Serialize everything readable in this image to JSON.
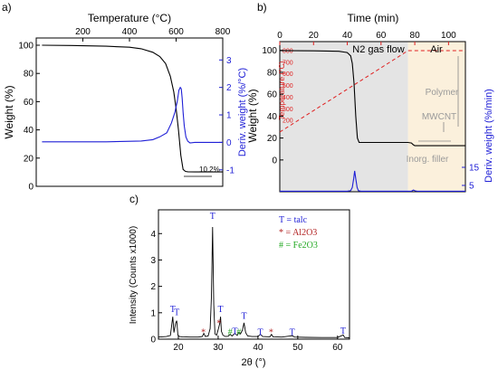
{
  "chart_data": [
    {
      "panel": "a)",
      "type": "line",
      "xlabel_top": "Temperature (°C)",
      "ylabel_left": "Weight (%)",
      "ylabel_right": "Deriv. weight (%/°C)",
      "xlim": [
        0,
        800
      ],
      "xticks": [
        "200",
        "400",
        "600",
        "800"
      ],
      "ylim_left": [
        0,
        100
      ],
      "yticks_left": [
        "0",
        "20",
        "40",
        "60",
        "80",
        "100"
      ],
      "ylim_right": [
        -1.6,
        3.8
      ],
      "yticks_right": [
        "-1",
        "0",
        "1",
        "2",
        "3"
      ],
      "annotation": "10.2%",
      "colors": {
        "weight": "#000000",
        "deriv": "#1f1fd6",
        "right_axis": "#1f1fd6"
      },
      "series": [
        {
          "axis": "left",
          "color": "#000000",
          "x": [
            25,
            150,
            300,
            400,
            450,
            500,
            530,
            555,
            575,
            590,
            600,
            610,
            620,
            630,
            640,
            650,
            680,
            720,
            800
          ],
          "y": [
            100,
            99.8,
            99.3,
            98.6,
            97.5,
            95,
            92,
            87,
            78,
            67,
            55,
            40,
            22,
            12,
            10.6,
            10.3,
            10.2,
            10.2,
            10.2
          ]
        },
        {
          "axis": "right",
          "color": "#1f1fd6",
          "x": [
            25,
            300,
            450,
            500,
            530,
            560,
            580,
            595,
            605,
            612,
            618,
            622,
            626,
            630,
            635,
            642,
            650,
            660,
            680,
            720,
            800
          ],
          "y": [
            0.02,
            0.02,
            0.05,
            0.1,
            0.2,
            0.35,
            0.7,
            1.1,
            1.5,
            1.9,
            2.0,
            1.95,
            1.6,
            1.1,
            0.6,
            0.2,
            0.04,
            -0.02,
            0.0,
            0.0,
            0.0
          ]
        }
      ]
    },
    {
      "panel": "b)",
      "type": "line",
      "xlabel_top": "Time (min)",
      "ylabel_left": "Weight (%)",
      "ylabel_inner": "Temperature (°C)",
      "ylabel_right": "Deriv. weight (%/min)",
      "xlim": [
        0,
        110
      ],
      "xticks": [
        "0",
        "20",
        "40",
        "60",
        "80",
        "100"
      ],
      "ylim_left": [
        -29,
        108
      ],
      "yticks_left": [
        "0",
        "20",
        "40",
        "60",
        "80",
        "100"
      ],
      "yticks_inner": [
        "200",
        "300",
        "400",
        "500",
        "600",
        "700",
        "800"
      ],
      "yticks_right": [
        "5",
        "15"
      ],
      "region_labels": [
        "N2 gas flow",
        "Air"
      ],
      "region_colors": {
        "n2": "#e4e4e4",
        "air": "#fbf0dc"
      },
      "annotations": [
        "Polymer",
        "MWCNT",
        "Inorg. filler"
      ],
      "colors": {
        "weight": "#000000",
        "temperature": "#e02020",
        "deriv": "#1f1fd6"
      },
      "series": [
        {
          "axis": "left",
          "color": "#000000",
          "x": [
            0,
            20,
            35,
            40,
            42,
            43,
            44,
            45,
            46,
            47,
            50,
            60,
            76,
            78,
            79,
            80,
            85,
            100,
            110
          ],
          "y": [
            99.8,
            99.6,
            99.2,
            98,
            95,
            88,
            70,
            40,
            20,
            16,
            16,
            16,
            16,
            15.5,
            14,
            13,
            13,
            13,
            13
          ]
        },
        {
          "axis": "temperature",
          "color": "#e02020",
          "x": [
            0,
            76,
            78,
            110
          ],
          "y": [
            100,
            800,
            800,
            800
          ]
        },
        {
          "axis": "deriv",
          "color": "#1f1fd6",
          "x": [
            0,
            40,
            42,
            43,
            43.8,
            44.4,
            45,
            45.8,
            46.6,
            48,
            60,
            78,
            79.2,
            80.2,
            81.5,
            90,
            110
          ],
          "y": [
            -28.5,
            -28.5,
            -28,
            -25,
            -17,
            -10,
            -17,
            -25,
            -28,
            -28.5,
            -28.5,
            -28.5,
            -27.4,
            -28.2,
            -28.5,
            -28.5,
            -28.5
          ]
        }
      ]
    },
    {
      "panel": "c)",
      "type": "line",
      "xlabel": "2θ (°)",
      "ylabel": "Intensity (Counts x1000)",
      "xlim": [
        15,
        63
      ],
      "xticks": [
        "20",
        "30",
        "40",
        "50",
        "60"
      ],
      "ylim": [
        0,
        4.9
      ],
      "yticks": [
        "0",
        "1",
        "2",
        "3",
        "4"
      ],
      "legend": [
        "T = talc",
        "* = Al2O3",
        "# = Fe2O3"
      ],
      "legend_colors": [
        "#1f1fd6",
        "#b22222",
        "#22a822"
      ],
      "peak_markers": [
        {
          "label": "T",
          "x": 18.6,
          "y": 1.02,
          "color": "#1f1fd6"
        },
        {
          "label": "T",
          "x": 19.6,
          "y": 0.9,
          "color": "#1f1fd6"
        },
        {
          "label": "*",
          "x": 26.3,
          "y": 0.15,
          "color": "#b22222"
        },
        {
          "label": "T",
          "x": 28.6,
          "y": 4.55,
          "color": "#1f1fd6"
        },
        {
          "label": "T",
          "x": 30.6,
          "y": 1.02,
          "color": "#1f1fd6"
        },
        {
          "label": "*",
          "x": 30.2,
          "y": 0.5,
          "color": "#b22222"
        },
        {
          "label": "#",
          "x": 33.0,
          "y": 0.15,
          "color": "#22a822"
        },
        {
          "label": "T",
          "x": 34.2,
          "y": 0.18,
          "color": "#1f1fd6"
        },
        {
          "label": "#",
          "x": 35.2,
          "y": 0.15,
          "color": "#22a822"
        },
        {
          "label": "T",
          "x": 36.5,
          "y": 0.77,
          "color": "#1f1fd6"
        },
        {
          "label": "T",
          "x": 40.6,
          "y": 0.15,
          "color": "#1f1fd6"
        },
        {
          "label": "*",
          "x": 43.3,
          "y": 0.15,
          "color": "#b22222"
        },
        {
          "label": "T",
          "x": 48.6,
          "y": 0.15,
          "color": "#1f1fd6"
        },
        {
          "label": "T",
          "x": 61.4,
          "y": 0.2,
          "color": "#1f1fd6"
        }
      ],
      "series": [
        {
          "color": "#000000",
          "x": [
            15,
            17,
            18,
            18.6,
            18.9,
            19.3,
            19.6,
            19.9,
            20.3,
            21,
            23,
            25,
            26,
            26.4,
            26.8,
            27.5,
            28,
            28.3,
            28.6,
            28.9,
            29.2,
            29.6,
            30,
            30.4,
            30.6,
            30.8,
            31.2,
            31.8,
            32.5,
            33,
            33.5,
            34.2,
            34.8,
            35.2,
            35.6,
            36.1,
            36.5,
            36.9,
            37.4,
            38.5,
            40,
            40.6,
            41.2,
            43,
            43.4,
            43.8,
            46,
            48.6,
            49.2,
            52,
            56,
            60,
            61.4,
            61.8,
            63
          ],
          "y": [
            0.08,
            0.1,
            0.14,
            0.85,
            0.25,
            0.6,
            0.7,
            0.15,
            0.1,
            0.09,
            0.08,
            0.08,
            0.1,
            0.22,
            0.1,
            0.12,
            0.4,
            1.6,
            4.25,
            1.3,
            0.2,
            0.15,
            0.35,
            0.6,
            0.85,
            0.3,
            0.15,
            0.1,
            0.11,
            0.18,
            0.12,
            0.22,
            0.14,
            0.26,
            0.2,
            0.35,
            0.62,
            0.25,
            0.12,
            0.1,
            0.1,
            0.18,
            0.1,
            0.09,
            0.18,
            0.09,
            0.08,
            0.13,
            0.08,
            0.07,
            0.06,
            0.06,
            0.16,
            0.06,
            0.05
          ]
        }
      ]
    }
  ]
}
